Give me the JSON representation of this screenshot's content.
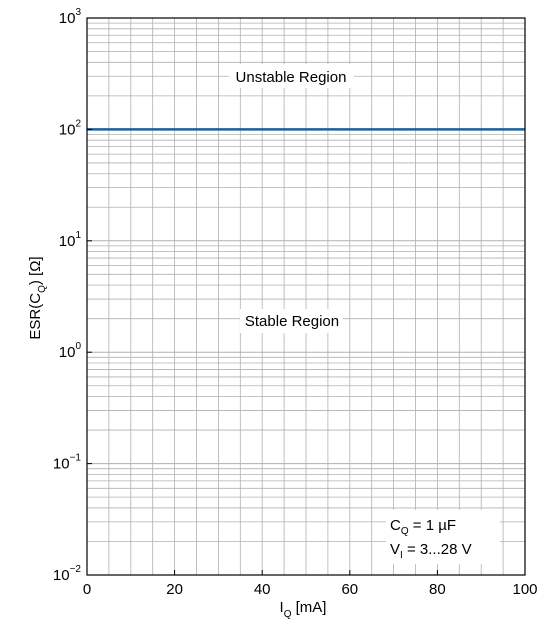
{
  "chart_data": {
    "type": "line",
    "xlabel": {
      "main": "I",
      "sub": "Q",
      "rest": " [mA]"
    },
    "ylabel": {
      "pre": "ESR(C",
      "sub": "Q",
      "rest": ") [Ω]"
    },
    "xlim": [
      0,
      100
    ],
    "ylim": [
      0.01,
      1000
    ],
    "y_scale": "log",
    "grid": true,
    "x_ticks": [
      0,
      20,
      40,
      60,
      80,
      100
    ],
    "x_tick_labels": [
      "0",
      "20",
      "40",
      "60",
      "80",
      "100"
    ],
    "y_ticks": [
      {
        "value": 1000,
        "base": "10",
        "exp": "3"
      },
      {
        "value": 100,
        "base": "10",
        "exp": "2"
      },
      {
        "value": 10,
        "base": "10",
        "exp": "1"
      },
      {
        "value": 1,
        "base": "10",
        "exp": "0"
      },
      {
        "value": 0.1,
        "base": "10",
        "exp": "−1"
      },
      {
        "value": 0.01,
        "base": "10",
        "exp": "−2"
      }
    ],
    "series": [
      {
        "x": [
          0,
          100
        ],
        "y": [
          100,
          100
        ],
        "color": "#1f5f9f"
      }
    ],
    "annotations": {
      "unstable": "Unstable Region",
      "stable": "Stable Region",
      "cond1": {
        "main": "C",
        "sub": "Q",
        "rest": " = 1 µF"
      },
      "cond2": {
        "main": "V",
        "sub": "I",
        "rest": " = 3...28 V"
      }
    }
  }
}
